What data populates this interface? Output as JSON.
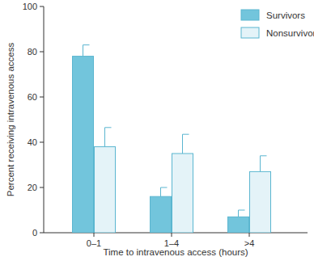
{
  "chart_data": {
    "type": "bar",
    "x_label": "Time to intravenous access (hours)",
    "y_label": "Percent receiving intravenous access",
    "categories": [
      "0–1",
      "1–4",
      ">4"
    ],
    "series": [
      {
        "name": "Survivors",
        "color": "#72c5dc",
        "values": [
          78,
          16,
          7
        ],
        "errors": [
          5,
          4,
          3
        ]
      },
      {
        "name": "Nonsurvivors",
        "color": "#e4f3f8",
        "values": [
          38,
          35,
          27
        ],
        "errors": [
          8.5,
          8.5,
          7
        ]
      }
    ],
    "ylim": [
      0,
      100
    ],
    "yticks": [
      0,
      20,
      40,
      60,
      80,
      100
    ],
    "legend": "top-right",
    "grid": false
  }
}
